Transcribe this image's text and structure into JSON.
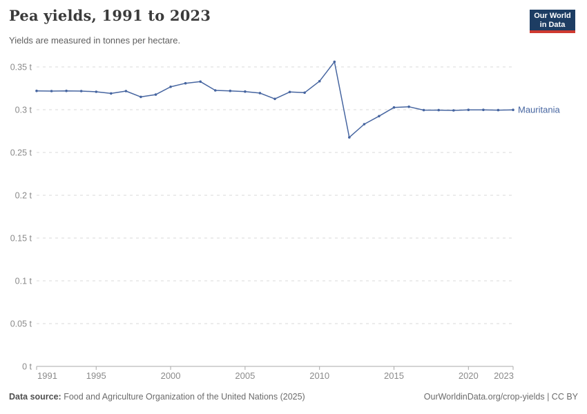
{
  "header": {
    "title": "Pea yields, 1991 to 2023",
    "subtitle": "Yields are measured in tonnes per hectare.",
    "logo": {
      "line1": "Our World",
      "line2": "in Data"
    }
  },
  "chart_data": {
    "type": "line",
    "title": "Pea yields, 1991 to 2023",
    "subtitle": "Yields are measured in tonnes per hectare.",
    "unit": "t",
    "xlim": [
      1991,
      2023
    ],
    "ylim": [
      0,
      0.35
    ],
    "x_ticks": [
      1991,
      1995,
      2000,
      2005,
      2010,
      2015,
      2020,
      2023
    ],
    "y_ticks": [
      0,
      0.05,
      0.1,
      0.15,
      0.2,
      0.25,
      0.3,
      0.35
    ],
    "y_tick_suffix": " t",
    "grid": "horizontal-dashed",
    "legend_position": "end-of-line",
    "series": [
      {
        "name": "Mauritania",
        "color": "#4665a0",
        "x": [
          1991,
          1992,
          1993,
          1994,
          1995,
          1996,
          1997,
          1998,
          1999,
          2000,
          2001,
          2002,
          2003,
          2004,
          2005,
          2006,
          2007,
          2008,
          2009,
          2010,
          2011,
          2012,
          2013,
          2014,
          2015,
          2016,
          2017,
          2018,
          2019,
          2020,
          2021,
          2022,
          2023
        ],
        "values": [
          0.322,
          0.3218,
          0.322,
          0.3218,
          0.321,
          0.319,
          0.3218,
          0.315,
          0.3177,
          0.3268,
          0.3309,
          0.3328,
          0.3226,
          0.322,
          0.3212,
          0.3194,
          0.3127,
          0.3207,
          0.3199,
          0.3333,
          0.356,
          0.2677,
          0.2831,
          0.2925,
          0.3027,
          0.3035,
          0.2995,
          0.2995,
          0.2992,
          0.2998,
          0.2998,
          0.2995,
          0.2998
        ]
      }
    ]
  },
  "footer": {
    "source_label": "Data source:",
    "source_text": " Food and Agriculture Organization of the United Nations (2025)",
    "rights": "OurWorldinData.org/crop-yields | CC BY"
  },
  "colors": {
    "accent": "#4665a0",
    "grid": "#d8d8d8",
    "axis": "#a8a8a8",
    "tick_label": "#8a8a8a",
    "logo_bg": "#1d3d63",
    "logo_red": "#cf3a30"
  }
}
